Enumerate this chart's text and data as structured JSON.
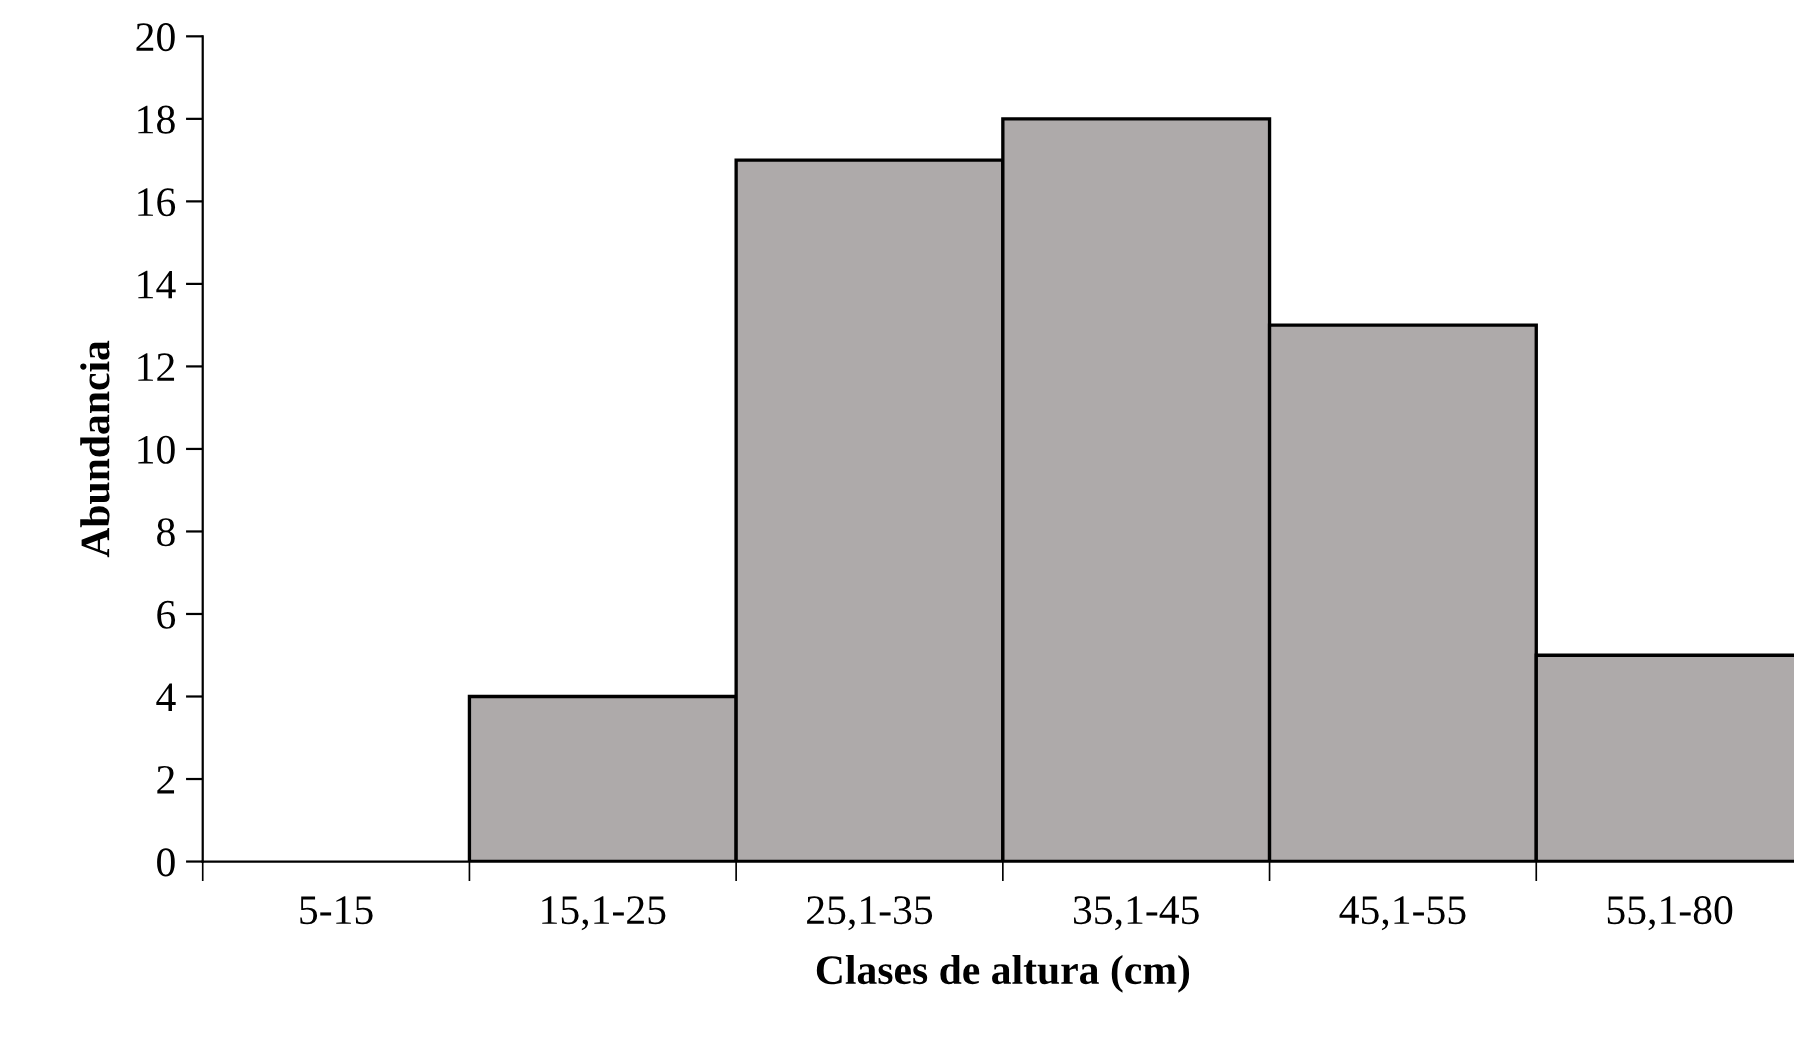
{
  "chart_data": {
    "type": "bar",
    "xlabel": "Clases de altura (cm)",
    "ylabel": "Abundancia",
    "categories": [
      "5-15",
      "15,1-25",
      "25,1-35",
      "35,1-45",
      "45,1-55",
      "55,1-80"
    ],
    "values": [
      0,
      4,
      17,
      18,
      13,
      5
    ],
    "color": "#aeaaaa",
    "ylim": [
      0,
      20
    ],
    "yticks": [
      0,
      2,
      4,
      6,
      8,
      10,
      12,
      14,
      16,
      18,
      20
    ],
    "grid": false,
    "legend": false
  }
}
